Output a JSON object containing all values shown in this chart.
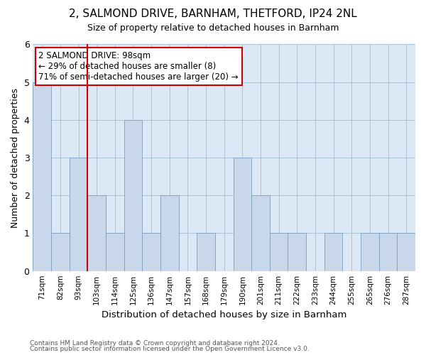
{
  "title_line1": "2, SALMOND DRIVE, BARNHAM, THETFORD, IP24 2NL",
  "title_line2": "Size of property relative to detached houses in Barnham",
  "xlabel": "Distribution of detached houses by size in Barnham",
  "ylabel": "Number of detached properties",
  "footer_line1": "Contains HM Land Registry data © Crown copyright and database right 2024.",
  "footer_line2": "Contains public sector information licensed under the Open Government Licence v3.0.",
  "annotation_title": "2 SALMOND DRIVE: 98sqm",
  "annotation_line1": "← 29% of detached houses are smaller (8)",
  "annotation_line2": "71% of semi-detached houses are larger (20) →",
  "bar_color": "#c8d8ea",
  "bar_edge_color": "#7aa0c0",
  "ref_line_color": "#cc0000",
  "annotation_box_edgecolor": "#cc0000",
  "annotation_box_facecolor": "#ffffff",
  "plot_bg_color": "#dce8f5",
  "background_color": "#ffffff",
  "grid_color": "#b0c4d8",
  "title1_fontsize": 11,
  "title2_fontsize": 9,
  "categories": [
    "71sqm",
    "82sqm",
    "93sqm",
    "103sqm",
    "114sqm",
    "125sqm",
    "136sqm",
    "147sqm",
    "157sqm",
    "168sqm",
    "179sqm",
    "190sqm",
    "201sqm",
    "211sqm",
    "222sqm",
    "233sqm",
    "244sqm",
    "255sqm",
    "265sqm",
    "276sqm",
    "287sqm"
  ],
  "values": [
    5,
    1,
    3,
    2,
    1,
    4,
    1,
    2,
    0,
    1,
    0,
    3,
    2,
    1,
    1,
    0,
    1,
    0,
    1,
    1,
    1
  ],
  "ylim": [
    0,
    6
  ],
  "yticks": [
    0,
    1,
    2,
    3,
    4,
    5,
    6
  ],
  "ref_line_x": 2.5,
  "figsize": [
    6.0,
    5.0
  ],
  "dpi": 100
}
